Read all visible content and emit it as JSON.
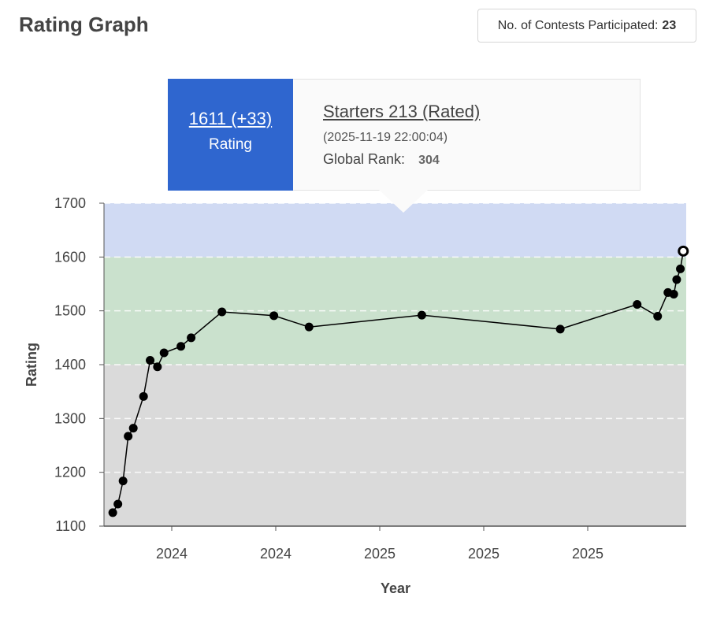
{
  "header": {
    "title": "Rating Graph",
    "contests_label": "No. of Contests Participated:",
    "contests_count": "23"
  },
  "tooltip": {
    "rating": "1611 (+33)",
    "rating_label": "Rating",
    "contest_name": "Starters 213 (Rated)",
    "date": "(2025-11-19 22:00:04)",
    "global_rank_label": "Global Rank:",
    "global_rank": "304"
  },
  "chart_data": {
    "type": "line",
    "title": "",
    "xlabel": "Year",
    "ylabel": "Rating",
    "ylim": [
      1100,
      1700
    ],
    "yticks": [
      1100,
      1200,
      1300,
      1400,
      1500,
      1600,
      1700
    ],
    "xticks": [
      "2024",
      "2024",
      "2025",
      "2025",
      "2025"
    ],
    "grid": true,
    "bands": [
      {
        "from": 1100,
        "to": 1400,
        "color": "#dadada"
      },
      {
        "from": 1400,
        "to": 1600,
        "color": "#cae1cd"
      },
      {
        "from": 1600,
        "to": 1700,
        "color": "#d0daf3"
      }
    ],
    "line_color": "#000000",
    "series": [
      {
        "x": [
          "2023-10-02",
          "2023-10-09",
          "2023-10-16",
          "2023-10-23",
          "2023-10-30",
          "2023-11-13",
          "2023-11-22",
          "2023-12-02",
          "2023-12-11",
          "2024-01-03",
          "2024-01-17",
          "2024-02-28",
          "2024-05-09",
          "2024-06-26",
          "2024-11-27",
          "2025-06-04",
          "2025-09-17",
          "2025-10-15",
          "2025-10-29",
          "2025-11-06",
          "2025-11-10",
          "2025-11-15",
          "2025-11-19"
        ],
        "y": [
          1125,
          1141,
          1184,
          1267,
          1282,
          1341,
          1408,
          1396,
          1422,
          1434,
          1450,
          1498,
          1491,
          1470,
          1492,
          1466,
          1512,
          1490,
          1534,
          1531,
          1558,
          1578,
          1611
        ]
      }
    ]
  }
}
